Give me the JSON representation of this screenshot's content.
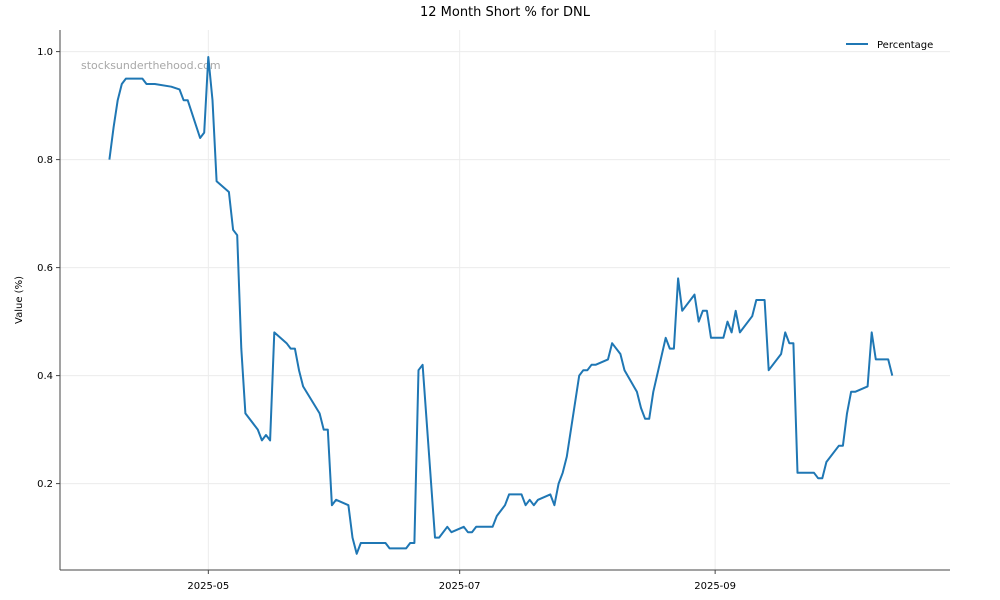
{
  "chart_data": {
    "type": "line",
    "title": "12 Month Short % for DNL",
    "xlabel": "",
    "ylabel": "Value (%)",
    "watermark": "stocksunderthehood.com",
    "legend": {
      "placement": "top-right",
      "entries": [
        "Percentage"
      ]
    },
    "grid": true,
    "xlim": [
      "2025-03-26",
      "2025-10-28"
    ],
    "ylim": [
      0.04,
      1.04
    ],
    "x_ticks": [
      {
        "date": "2025-05-01",
        "label": "2025-05"
      },
      {
        "date": "2025-07-01",
        "label": "2025-07"
      },
      {
        "date": "2025-09-01",
        "label": "2025-09"
      }
    ],
    "y_ticks": [
      {
        "value": 0.2,
        "label": "0.2"
      },
      {
        "value": 0.4,
        "label": "0.4"
      },
      {
        "value": 0.6,
        "label": "0.6"
      },
      {
        "value": 0.8,
        "label": "0.8"
      },
      {
        "value": 1.0,
        "label": "1.0"
      }
    ],
    "colors": {
      "series": "#1f77b4",
      "grid": "#ececec",
      "axis": "#444444"
    },
    "series": [
      {
        "name": "Percentage",
        "points": [
          [
            "2025-04-07",
            0.8
          ],
          [
            "2025-04-08",
            0.86
          ],
          [
            "2025-04-09",
            0.91
          ],
          [
            "2025-04-10",
            0.94
          ],
          [
            "2025-04-11",
            0.95
          ],
          [
            "2025-04-14",
            0.95
          ],
          [
            "2025-04-15",
            0.95
          ],
          [
            "2025-04-16",
            0.94
          ],
          [
            "2025-04-17",
            0.94
          ],
          [
            "2025-04-18",
            0.94
          ],
          [
            "2025-04-22",
            0.935
          ],
          [
            "2025-04-24",
            0.93
          ],
          [
            "2025-04-25",
            0.91
          ],
          [
            "2025-04-26",
            0.91
          ],
          [
            "2025-04-29",
            0.84
          ],
          [
            "2025-04-30",
            0.85
          ],
          [
            "2025-05-01",
            0.99
          ],
          [
            "2025-05-02",
            0.91
          ],
          [
            "2025-05-03",
            0.76
          ],
          [
            "2025-05-06",
            0.74
          ],
          [
            "2025-05-07",
            0.67
          ],
          [
            "2025-05-08",
            0.66
          ],
          [
            "2025-05-09",
            0.45
          ],
          [
            "2025-05-10",
            0.33
          ],
          [
            "2025-05-13",
            0.3
          ],
          [
            "2025-05-14",
            0.28
          ],
          [
            "2025-05-15",
            0.29
          ],
          [
            "2025-05-16",
            0.28
          ],
          [
            "2025-05-17",
            0.48
          ],
          [
            "2025-05-20",
            0.46
          ],
          [
            "2025-05-21",
            0.45
          ],
          [
            "2025-05-22",
            0.45
          ],
          [
            "2025-05-23",
            0.41
          ],
          [
            "2025-05-24",
            0.38
          ],
          [
            "2025-05-28",
            0.33
          ],
          [
            "2025-05-29",
            0.3
          ],
          [
            "2025-05-30",
            0.3
          ],
          [
            "2025-05-31",
            0.16
          ],
          [
            "2025-06-01",
            0.17
          ],
          [
            "2025-06-04",
            0.16
          ],
          [
            "2025-06-05",
            0.1
          ],
          [
            "2025-06-06",
            0.07
          ],
          [
            "2025-06-07",
            0.09
          ],
          [
            "2025-06-13",
            0.09
          ],
          [
            "2025-06-14",
            0.08
          ],
          [
            "2025-06-18",
            0.08
          ],
          [
            "2025-06-19",
            0.09
          ],
          [
            "2025-06-20",
            0.09
          ],
          [
            "2025-06-21",
            0.41
          ],
          [
            "2025-06-22",
            0.42
          ],
          [
            "2025-06-25",
            0.1
          ],
          [
            "2025-06-26",
            0.1
          ],
          [
            "2025-06-28",
            0.12
          ],
          [
            "2025-06-29",
            0.11
          ],
          [
            "2025-07-02",
            0.12
          ],
          [
            "2025-07-03",
            0.11
          ],
          [
            "2025-07-04",
            0.11
          ],
          [
            "2025-07-05",
            0.12
          ],
          [
            "2025-07-09",
            0.12
          ],
          [
            "2025-07-10",
            0.14
          ],
          [
            "2025-07-12",
            0.16
          ],
          [
            "2025-07-13",
            0.18
          ],
          [
            "2025-07-16",
            0.18
          ],
          [
            "2025-07-17",
            0.16
          ],
          [
            "2025-07-18",
            0.17
          ],
          [
            "2025-07-19",
            0.16
          ],
          [
            "2025-07-20",
            0.17
          ],
          [
            "2025-07-23",
            0.18
          ],
          [
            "2025-07-24",
            0.16
          ],
          [
            "2025-07-25",
            0.2
          ],
          [
            "2025-07-26",
            0.22
          ],
          [
            "2025-07-27",
            0.25
          ],
          [
            "2025-07-30",
            0.4
          ],
          [
            "2025-07-31",
            0.41
          ],
          [
            "2025-08-01",
            0.41
          ],
          [
            "2025-08-02",
            0.42
          ],
          [
            "2025-08-03",
            0.42
          ],
          [
            "2025-08-06",
            0.43
          ],
          [
            "2025-08-07",
            0.46
          ],
          [
            "2025-08-09",
            0.44
          ],
          [
            "2025-08-10",
            0.41
          ],
          [
            "2025-08-13",
            0.37
          ],
          [
            "2025-08-14",
            0.34
          ],
          [
            "2025-08-15",
            0.32
          ],
          [
            "2025-08-16",
            0.32
          ],
          [
            "2025-08-17",
            0.37
          ],
          [
            "2025-08-20",
            0.47
          ],
          [
            "2025-08-21",
            0.45
          ],
          [
            "2025-08-22",
            0.45
          ],
          [
            "2025-08-23",
            0.58
          ],
          [
            "2025-08-24",
            0.52
          ],
          [
            "2025-08-27",
            0.55
          ],
          [
            "2025-08-28",
            0.5
          ],
          [
            "2025-08-29",
            0.52
          ],
          [
            "2025-08-30",
            0.52
          ],
          [
            "2025-08-31",
            0.47
          ],
          [
            "2025-09-03",
            0.47
          ],
          [
            "2025-09-04",
            0.5
          ],
          [
            "2025-09-05",
            0.48
          ],
          [
            "2025-09-06",
            0.52
          ],
          [
            "2025-09-07",
            0.48
          ],
          [
            "2025-09-10",
            0.51
          ],
          [
            "2025-09-11",
            0.54
          ],
          [
            "2025-09-13",
            0.54
          ],
          [
            "2025-09-14",
            0.41
          ],
          [
            "2025-09-17",
            0.44
          ],
          [
            "2025-09-18",
            0.48
          ],
          [
            "2025-09-19",
            0.46
          ],
          [
            "2025-09-20",
            0.46
          ],
          [
            "2025-09-21",
            0.22
          ],
          [
            "2025-09-25",
            0.22
          ],
          [
            "2025-09-26",
            0.21
          ],
          [
            "2025-09-27",
            0.21
          ],
          [
            "2025-09-28",
            0.24
          ],
          [
            "2025-10-01",
            0.27
          ],
          [
            "2025-10-02",
            0.27
          ],
          [
            "2025-10-03",
            0.33
          ],
          [
            "2025-10-04",
            0.37
          ],
          [
            "2025-10-05",
            0.37
          ],
          [
            "2025-10-08",
            0.38
          ],
          [
            "2025-10-09",
            0.48
          ],
          [
            "2025-10-10",
            0.43
          ],
          [
            "2025-10-13",
            0.43
          ],
          [
            "2025-10-14",
            0.4
          ]
        ]
      }
    ]
  }
}
